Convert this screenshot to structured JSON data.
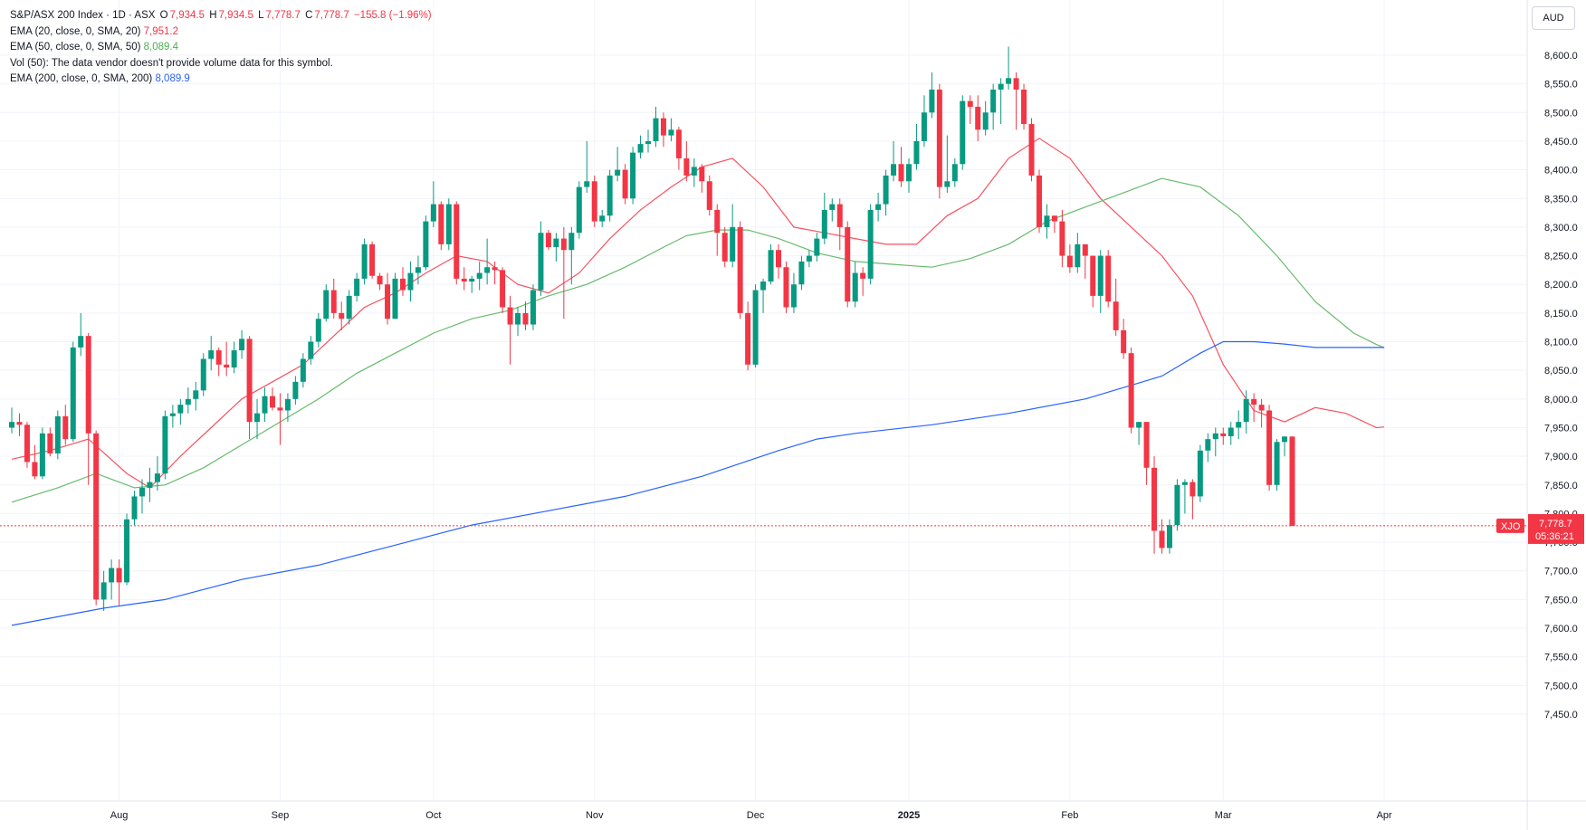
{
  "legend": {
    "symbol_line": "S&P/ASX 200 Index · 1D · ASX",
    "ohlc": {
      "o_label": "O",
      "o_value": "7,934.5",
      "h_label": "H",
      "h_value": "7,934.5",
      "l_label": "L",
      "l_value": "7,778.7",
      "c_label": "C",
      "c_value": "7,778.7",
      "change": "−155.8 (−1.96%)"
    },
    "ema20_label": "EMA (20, close, 0, SMA, 20)",
    "ema20_value": "7,951.2",
    "ema50_label": "EMA (50, close, 0, SMA, 50)",
    "ema50_value": "8,089.4",
    "vol_label": "Vol (50): The data vendor doesn't provide volume data for this symbol.",
    "ema200_label": "EMA (200, close, 0, SMA, 200)",
    "ema200_value": "8,089.9"
  },
  "currency_button": "AUD",
  "price_badge": {
    "symbol": "XJO",
    "price": "7,778.7",
    "countdown": "05:36:21"
  },
  "colors": {
    "up": "#089981",
    "down": "#f23645",
    "ema20": "#f7525f",
    "ema50": "#66bb6a",
    "ema200": "#2962ff",
    "grid": "#f0f3fa"
  },
  "chart_data": {
    "type": "candlestick",
    "y_axis": {
      "ticks": [
        "8,600.0",
        "8,550.0",
        "8,500.0",
        "8,450.0",
        "8,400.0",
        "8,350.0",
        "8,300.0",
        "8,250.0",
        "8,200.0",
        "8,150.0",
        "8,100.0",
        "8,050.0",
        "8,000.0",
        "7,950.0",
        "7,900.0",
        "7,850.0",
        "7,800.0",
        "7,750.0",
        "7,700.0",
        "7,650.0",
        "7,600.0",
        "7,550.0",
        "7,500.0",
        "7,450.0"
      ],
      "ylim": [
        7440,
        8640
      ],
      "position": "right"
    },
    "x_axis": {
      "ticks": [
        {
          "label": "Aug",
          "index": 14
        },
        {
          "label": "Sep",
          "index": 35
        },
        {
          "label": "Oct",
          "index": 55
        },
        {
          "label": "Nov",
          "index": 76
        },
        {
          "label": "Dec",
          "index": 97
        },
        {
          "label": "2025",
          "index": 117,
          "bold": true
        },
        {
          "label": "Feb",
          "index": 138
        },
        {
          "label": "Mar",
          "index": 158
        },
        {
          "label": "Apr",
          "index": 179
        }
      ]
    },
    "grid": true,
    "last_close": 7778.7,
    "candles": [
      [
        7950,
        7985,
        7940,
        7960
      ],
      [
        7960,
        7975,
        7935,
        7955
      ],
      [
        7955,
        7960,
        7880,
        7890
      ],
      [
        7890,
        7920,
        7860,
        7865
      ],
      [
        7865,
        7950,
        7860,
        7940
      ],
      [
        7940,
        7950,
        7900,
        7905
      ],
      [
        7905,
        7980,
        7895,
        7970
      ],
      [
        7970,
        7990,
        7920,
        7930
      ],
      [
        7930,
        8100,
        7925,
        8090
      ],
      [
        8090,
        8150,
        8075,
        8110
      ],
      [
        8110,
        8115,
        7850,
        7940
      ],
      [
        7940,
        7945,
        7640,
        7650
      ],
      [
        7650,
        7700,
        7630,
        7680
      ],
      [
        7680,
        7720,
        7650,
        7705
      ],
      [
        7705,
        7720,
        7640,
        7680
      ],
      [
        7680,
        7800,
        7675,
        7790
      ],
      [
        7790,
        7840,
        7780,
        7830
      ],
      [
        7830,
        7860,
        7800,
        7845
      ],
      [
        7845,
        7880,
        7820,
        7855
      ],
      [
        7855,
        7900,
        7840,
        7870
      ],
      [
        7870,
        7980,
        7860,
        7970
      ],
      [
        7970,
        7990,
        7950,
        7975
      ],
      [
        7975,
        8000,
        7955,
        7990
      ],
      [
        7990,
        8020,
        7975,
        8000
      ],
      [
        8000,
        8030,
        7980,
        8015
      ],
      [
        8015,
        8080,
        8005,
        8070
      ],
      [
        8070,
        8110,
        8050,
        8085
      ],
      [
        8085,
        8090,
        8040,
        8060
      ],
      [
        8060,
        8100,
        8040,
        8055
      ],
      [
        8055,
        8100,
        8045,
        8085
      ],
      [
        8085,
        8120,
        8070,
        8105
      ],
      [
        8105,
        8110,
        7930,
        7960
      ],
      [
        7960,
        8000,
        7930,
        7975
      ],
      [
        7975,
        8020,
        7960,
        8005
      ],
      [
        8005,
        8020,
        7980,
        7985
      ],
      [
        7985,
        8010,
        7920,
        7980
      ],
      [
        7980,
        8010,
        7960,
        8000
      ],
      [
        8000,
        8040,
        7990,
        8030
      ],
      [
        8030,
        8080,
        8020,
        8070
      ],
      [
        8070,
        8110,
        8060,
        8100
      ],
      [
        8100,
        8150,
        8090,
        8140
      ],
      [
        8140,
        8200,
        8135,
        8190
      ],
      [
        8190,
        8210,
        8140,
        8150
      ],
      [
        8150,
        8170,
        8120,
        8140
      ],
      [
        8140,
        8190,
        8130,
        8180
      ],
      [
        8180,
        8220,
        8170,
        8210
      ],
      [
        8210,
        8280,
        8200,
        8270
      ],
      [
        8270,
        8275,
        8210,
        8215
      ],
      [
        8215,
        8220,
        8190,
        8200
      ],
      [
        8200,
        8220,
        8130,
        8140
      ],
      [
        8140,
        8220,
        8140,
        8210
      ],
      [
        8210,
        8230,
        8180,
        8190
      ],
      [
        8190,
        8240,
        8170,
        8220
      ],
      [
        8220,
        8250,
        8200,
        8230
      ],
      [
        8230,
        8320,
        8225,
        8310
      ],
      [
        8310,
        8380,
        8300,
        8340
      ],
      [
        8340,
        8345,
        8260,
        8270
      ],
      [
        8270,
        8350,
        8260,
        8340
      ],
      [
        8340,
        8345,
        8200,
        8210
      ],
      [
        8210,
        8230,
        8190,
        8205
      ],
      [
        8205,
        8215,
        8185,
        8210
      ],
      [
        8210,
        8240,
        8190,
        8220
      ],
      [
        8220,
        8280,
        8200,
        8230
      ],
      [
        8230,
        8240,
        8200,
        8225
      ],
      [
        8225,
        8230,
        8150,
        8160
      ],
      [
        8160,
        8180,
        8060,
        8130
      ],
      [
        8130,
        8160,
        8110,
        8150
      ],
      [
        8150,
        8170,
        8120,
        8130
      ],
      [
        8130,
        8200,
        8120,
        8190
      ],
      [
        8190,
        8310,
        8180,
        8290
      ],
      [
        8290,
        8295,
        8260,
        8265
      ],
      [
        8265,
        8290,
        8240,
        8280
      ],
      [
        8280,
        8300,
        8140,
        8260
      ],
      [
        8260,
        8300,
        8200,
        8290
      ],
      [
        8290,
        8380,
        8280,
        8370
      ],
      [
        8370,
        8450,
        8360,
        8380
      ],
      [
        8380,
        8390,
        8300,
        8310
      ],
      [
        8310,
        8330,
        8300,
        8320
      ],
      [
        8320,
        8400,
        8310,
        8390
      ],
      [
        8390,
        8440,
        8380,
        8400
      ],
      [
        8400,
        8410,
        8340,
        8350
      ],
      [
        8350,
        8440,
        8340,
        8430
      ],
      [
        8430,
        8460,
        8420,
        8445
      ],
      [
        8445,
        8470,
        8430,
        8450
      ],
      [
        8450,
        8510,
        8440,
        8490
      ],
      [
        8490,
        8500,
        8440,
        8460
      ],
      [
        8460,
        8490,
        8450,
        8470
      ],
      [
        8470,
        8475,
        8400,
        8420
      ],
      [
        8420,
        8450,
        8380,
        8390
      ],
      [
        8390,
        8420,
        8370,
        8405
      ],
      [
        8405,
        8410,
        8360,
        8380
      ],
      [
        8380,
        8390,
        8320,
        8330
      ],
      [
        8330,
        8340,
        8250,
        8290
      ],
      [
        8290,
        8300,
        8230,
        8240
      ],
      [
        8240,
        8340,
        8230,
        8300
      ],
      [
        8300,
        8310,
        8140,
        8150
      ],
      [
        8150,
        8170,
        8050,
        8060
      ],
      [
        8060,
        8200,
        8055,
        8190
      ],
      [
        8190,
        8210,
        8150,
        8205
      ],
      [
        8205,
        8270,
        8200,
        8260
      ],
      [
        8260,
        8270,
        8210,
        8230
      ],
      [
        8230,
        8240,
        8150,
        8160
      ],
      [
        8160,
        8220,
        8150,
        8200
      ],
      [
        8200,
        8250,
        8190,
        8240
      ],
      [
        8240,
        8260,
        8230,
        8250
      ],
      [
        8250,
        8290,
        8240,
        8280
      ],
      [
        8280,
        8360,
        8270,
        8330
      ],
      [
        8330,
        8350,
        8310,
        8340
      ],
      [
        8340,
        8350,
        8260,
        8300
      ],
      [
        8300,
        8310,
        8160,
        8170
      ],
      [
        8170,
        8240,
        8160,
        8220
      ],
      [
        8220,
        8230,
        8180,
        8210
      ],
      [
        8210,
        8340,
        8200,
        8330
      ],
      [
        8330,
        8360,
        8310,
        8340
      ],
      [
        8340,
        8400,
        8320,
        8390
      ],
      [
        8390,
        8450,
        8380,
        8410
      ],
      [
        8410,
        8440,
        8370,
        8380
      ],
      [
        8380,
        8420,
        8360,
        8410
      ],
      [
        8410,
        8480,
        8400,
        8450
      ],
      [
        8450,
        8530,
        8440,
        8500
      ],
      [
        8500,
        8570,
        8490,
        8540
      ],
      [
        8540,
        8550,
        8350,
        8370
      ],
      [
        8370,
        8460,
        8360,
        8380
      ],
      [
        8380,
        8420,
        8370,
        8410
      ],
      [
        8410,
        8530,
        8400,
        8520
      ],
      [
        8520,
        8530,
        8480,
        8510
      ],
      [
        8510,
        8530,
        8450,
        8470
      ],
      [
        8470,
        8520,
        8460,
        8500
      ],
      [
        8500,
        8550,
        8470,
        8540
      ],
      [
        8540,
        8560,
        8480,
        8550
      ],
      [
        8550,
        8615,
        8540,
        8560
      ],
      [
        8560,
        8570,
        8470,
        8540
      ],
      [
        8540,
        8550,
        8470,
        8480
      ],
      [
        8480,
        8490,
        8380,
        8390
      ],
      [
        8390,
        8400,
        8290,
        8300
      ],
      [
        8300,
        8340,
        8280,
        8320
      ],
      [
        8320,
        8320,
        8290,
        8310
      ],
      [
        8310,
        8330,
        8230,
        8250
      ],
      [
        8250,
        8270,
        8220,
        8230
      ],
      [
        8230,
        8290,
        8220,
        8270
      ],
      [
        8270,
        8270,
        8210,
        8250
      ],
      [
        8250,
        8250,
        8160,
        8180
      ],
      [
        8180,
        8260,
        8150,
        8250
      ],
      [
        8250,
        8260,
        8160,
        8170
      ],
      [
        8170,
        8210,
        8110,
        8120
      ],
      [
        8120,
        8140,
        8070,
        8080
      ],
      [
        8080,
        8090,
        7940,
        7950
      ],
      [
        7950,
        7960,
        7920,
        7960
      ],
      [
        7960,
        7960,
        7850,
        7880
      ],
      [
        7880,
        7900,
        7730,
        7770
      ],
      [
        7770,
        7790,
        7730,
        7740
      ],
      [
        7740,
        7790,
        7730,
        7780
      ],
      [
        7780,
        7860,
        7770,
        7850
      ],
      [
        7850,
        7860,
        7800,
        7855
      ],
      [
        7855,
        7860,
        7790,
        7830
      ],
      [
        7830,
        7920,
        7820,
        7910
      ],
      [
        7910,
        7940,
        7890,
        7930
      ],
      [
        7930,
        7950,
        7900,
        7940
      ],
      [
        7940,
        7950,
        7920,
        7935
      ],
      [
        7935,
        7960,
        7920,
        7950
      ],
      [
        7950,
        7980,
        7930,
        7960
      ],
      [
        7960,
        8015,
        7940,
        8000
      ],
      [
        8000,
        8010,
        7960,
        7990
      ],
      [
        7990,
        8000,
        7950,
        7980
      ],
      [
        7980,
        7990,
        7840,
        7850
      ],
      [
        7850,
        7930,
        7840,
        7925
      ],
      [
        7925,
        7935,
        7900,
        7934.5
      ],
      [
        7934.5,
        7934.5,
        7778.7,
        7778.7
      ]
    ],
    "series": [
      {
        "name": "EMA (20, close, 0, SMA, 20)",
        "color": "#f7525f",
        "x": [
          0,
          5,
          10,
          15,
          18,
          22,
          26,
          30,
          34,
          38,
          42,
          46,
          50,
          54,
          58,
          62,
          66,
          70,
          74,
          78,
          82,
          86,
          90,
          94,
          98,
          102,
          106,
          110,
          114,
          118,
          122,
          126,
          130,
          134,
          138,
          142,
          146,
          150,
          154,
          158,
          162,
          166,
          170,
          174,
          178,
          179
        ],
        "values": [
          7895,
          7910,
          7930,
          7870,
          7845,
          7900,
          7950,
          8000,
          8030,
          8060,
          8110,
          8160,
          8185,
          8220,
          8250,
          8240,
          8200,
          8185,
          8220,
          8280,
          8330,
          8370,
          8405,
          8420,
          8370,
          8300,
          8290,
          8280,
          8270,
          8270,
          8320,
          8350,
          8420,
          8455,
          8420,
          8350,
          8300,
          8250,
          8180,
          8060,
          7980,
          7960,
          7985,
          7975,
          7950,
          7951.2
        ]
      },
      {
        "name": "EMA (50, close, 0, SMA, 50)",
        "color": "#66bb6a",
        "x": [
          0,
          6,
          11,
          16,
          20,
          25,
          30,
          35,
          40,
          45,
          50,
          55,
          60,
          65,
          70,
          75,
          80,
          85,
          88,
          92,
          96,
          100,
          105,
          110,
          115,
          120,
          125,
          130,
          135,
          140,
          145,
          150,
          155,
          160,
          165,
          170,
          175,
          178,
          179
        ],
        "values": [
          7820,
          7845,
          7870,
          7845,
          7850,
          7880,
          7920,
          7960,
          8000,
          8045,
          8080,
          8115,
          8140,
          8155,
          8180,
          8200,
          8230,
          8265,
          8285,
          8295,
          8295,
          8280,
          8255,
          8240,
          8235,
          8230,
          8245,
          8270,
          8310,
          8335,
          8360,
          8385,
          8370,
          8320,
          8250,
          8170,
          8115,
          8095,
          8089.4
        ]
      },
      {
        "name": "EMA (200, close, 0, SMA, 200)",
        "color": "#2962ff",
        "x": [
          0,
          6,
          12,
          20,
          30,
          40,
          50,
          60,
          70,
          80,
          90,
          100,
          105,
          110,
          120,
          130,
          140,
          150,
          155,
          158,
          162,
          166,
          170,
          175,
          179
        ],
        "values": [
          7605,
          7620,
          7635,
          7650,
          7685,
          7710,
          7745,
          7780,
          7805,
          7830,
          7865,
          7910,
          7930,
          7940,
          7955,
          7975,
          8000,
          8040,
          8080,
          8100,
          8100,
          8096,
          8090,
          8090,
          8089.9
        ]
      }
    ]
  }
}
